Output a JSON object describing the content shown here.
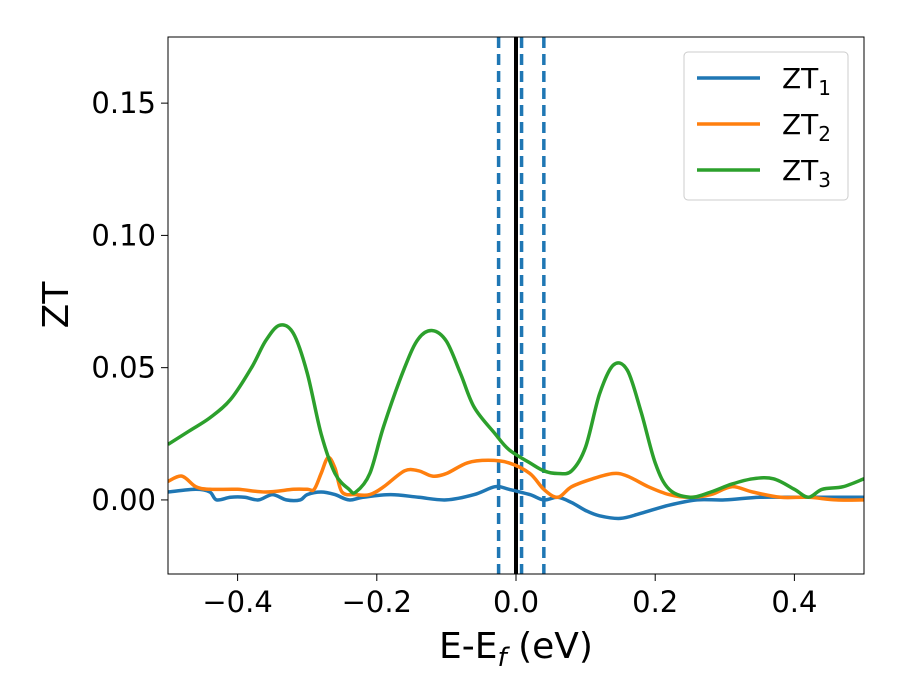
{
  "chart_data": {
    "type": "line",
    "xlabel": "E-E",
    "xlabel_sub": "f",
    "xlabel_unit": " (eV)",
    "ylabel": "ZT",
    "xlim": [
      -0.5,
      0.5
    ],
    "ylim": [
      -0.028,
      0.175
    ],
    "xticks": [
      -0.4,
      -0.2,
      0.0,
      0.2,
      0.4
    ],
    "xtick_labels": [
      "−0.4",
      "−0.2",
      "0.0",
      "0.2",
      "0.4"
    ],
    "yticks": [
      0.0,
      0.05,
      0.1,
      0.15
    ],
    "ytick_labels": [
      "0.00",
      "0.05",
      "0.10",
      "0.15"
    ],
    "grid": false,
    "legend_position": "top-right",
    "vlines": [
      {
        "x": 0.0,
        "style": "solid",
        "color": "#000000"
      },
      {
        "x": -0.025,
        "style": "dashed",
        "color": "#1f77b4"
      },
      {
        "x": 0.008,
        "style": "dashed",
        "color": "#1f77b4"
      },
      {
        "x": 0.04,
        "style": "dashed",
        "color": "#1f77b4"
      }
    ],
    "series": [
      {
        "name": "ZT",
        "sub": "1",
        "color": "#1f77b4",
        "points": [
          [
            -0.5,
            0.003
          ],
          [
            -0.46,
            0.004
          ],
          [
            -0.44,
            0.003
          ],
          [
            -0.43,
            0.0
          ],
          [
            -0.41,
            0.001
          ],
          [
            -0.39,
            0.001
          ],
          [
            -0.37,
            0.0
          ],
          [
            -0.35,
            0.002
          ],
          [
            -0.33,
            0.0
          ],
          [
            -0.31,
            0.0
          ],
          [
            -0.3,
            0.002
          ],
          [
            -0.28,
            0.003
          ],
          [
            -0.26,
            0.002
          ],
          [
            -0.24,
            0.0
          ],
          [
            -0.22,
            0.001
          ],
          [
            -0.18,
            0.002
          ],
          [
            -0.14,
            0.001
          ],
          [
            -0.1,
            0.0
          ],
          [
            -0.06,
            0.002
          ],
          [
            -0.03,
            0.005
          ],
          [
            -0.01,
            0.004
          ],
          [
            0.02,
            0.002
          ],
          [
            0.04,
            0.0
          ],
          [
            0.06,
            0.001
          ],
          [
            0.08,
            -0.001
          ],
          [
            0.1,
            -0.004
          ],
          [
            0.12,
            -0.006
          ],
          [
            0.15,
            -0.007
          ],
          [
            0.18,
            -0.005
          ],
          [
            0.22,
            -0.002
          ],
          [
            0.26,
            0.0
          ],
          [
            0.3,
            0.0
          ],
          [
            0.35,
            0.001
          ],
          [
            0.4,
            0.001
          ],
          [
            0.45,
            0.001
          ],
          [
            0.5,
            0.001
          ]
        ]
      },
      {
        "name": "ZT",
        "sub": "2",
        "color": "#ff7f0e",
        "points": [
          [
            -0.5,
            0.007
          ],
          [
            -0.48,
            0.009
          ],
          [
            -0.46,
            0.005
          ],
          [
            -0.44,
            0.004
          ],
          [
            -0.4,
            0.004
          ],
          [
            -0.36,
            0.003
          ],
          [
            -0.32,
            0.004
          ],
          [
            -0.3,
            0.004
          ],
          [
            -0.29,
            0.004
          ],
          [
            -0.28,
            0.01
          ],
          [
            -0.27,
            0.016
          ],
          [
            -0.26,
            0.012
          ],
          [
            -0.25,
            0.003
          ],
          [
            -0.23,
            0.002
          ],
          [
            -0.21,
            0.002
          ],
          [
            -0.19,
            0.005
          ],
          [
            -0.16,
            0.011
          ],
          [
            -0.14,
            0.011
          ],
          [
            -0.12,
            0.009
          ],
          [
            -0.1,
            0.01
          ],
          [
            -0.07,
            0.014
          ],
          [
            -0.04,
            0.015
          ],
          [
            -0.01,
            0.014
          ],
          [
            0.02,
            0.01
          ],
          [
            0.04,
            0.004
          ],
          [
            0.06,
            0.001
          ],
          [
            0.08,
            0.005
          ],
          [
            0.11,
            0.008
          ],
          [
            0.14,
            0.01
          ],
          [
            0.16,
            0.009
          ],
          [
            0.19,
            0.005
          ],
          [
            0.22,
            0.002
          ],
          [
            0.25,
            0.001
          ],
          [
            0.28,
            0.002
          ],
          [
            0.31,
            0.005
          ],
          [
            0.34,
            0.003
          ],
          [
            0.38,
            0.001
          ],
          [
            0.42,
            0.001
          ],
          [
            0.46,
            0.0
          ],
          [
            0.5,
            0.0
          ]
        ]
      },
      {
        "name": "ZT",
        "sub": "3",
        "color": "#2ca02c",
        "points": [
          [
            -0.5,
            0.021
          ],
          [
            -0.47,
            0.026
          ],
          [
            -0.44,
            0.031
          ],
          [
            -0.41,
            0.038
          ],
          [
            -0.38,
            0.05
          ],
          [
            -0.36,
            0.06
          ],
          [
            -0.34,
            0.066
          ],
          [
            -0.32,
            0.063
          ],
          [
            -0.3,
            0.048
          ],
          [
            -0.28,
            0.025
          ],
          [
            -0.26,
            0.01
          ],
          [
            -0.24,
            0.004
          ],
          [
            -0.23,
            0.003
          ],
          [
            -0.21,
            0.01
          ],
          [
            -0.19,
            0.028
          ],
          [
            -0.16,
            0.05
          ],
          [
            -0.14,
            0.061
          ],
          [
            -0.12,
            0.064
          ],
          [
            -0.1,
            0.06
          ],
          [
            -0.08,
            0.048
          ],
          [
            -0.06,
            0.035
          ],
          [
            -0.03,
            0.025
          ],
          [
            -0.01,
            0.019
          ],
          [
            0.02,
            0.014
          ],
          [
            0.04,
            0.011
          ],
          [
            0.06,
            0.01
          ],
          [
            0.08,
            0.011
          ],
          [
            0.1,
            0.02
          ],
          [
            0.12,
            0.04
          ],
          [
            0.14,
            0.051
          ],
          [
            0.16,
            0.049
          ],
          [
            0.18,
            0.033
          ],
          [
            0.2,
            0.014
          ],
          [
            0.22,
            0.004
          ],
          [
            0.25,
            0.001
          ],
          [
            0.28,
            0.003
          ],
          [
            0.31,
            0.006
          ],
          [
            0.34,
            0.008
          ],
          [
            0.37,
            0.008
          ],
          [
            0.4,
            0.004
          ],
          [
            0.42,
            0.001
          ],
          [
            0.44,
            0.004
          ],
          [
            0.47,
            0.005
          ],
          [
            0.5,
            0.008
          ]
        ]
      }
    ]
  }
}
